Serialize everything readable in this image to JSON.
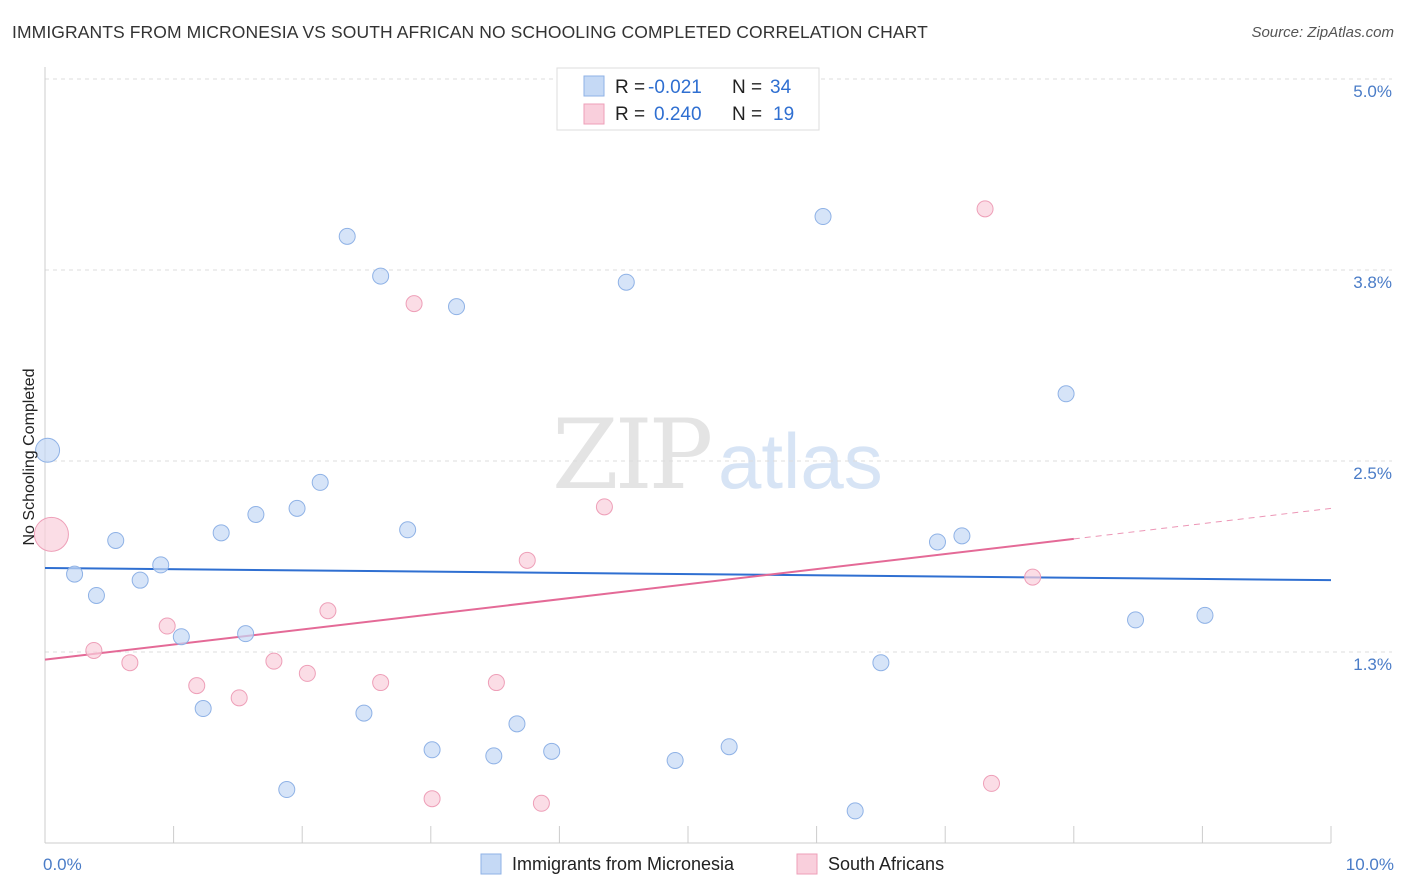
{
  "header": {
    "title": "IMMIGRANTS FROM MICRONESIA VS SOUTH AFRICAN NO SCHOOLING COMPLETED CORRELATION CHART",
    "source": "Source: ZipAtlas.com"
  },
  "watermark": {
    "zip": "ZIP",
    "atlas": "atlas"
  },
  "colors": {
    "blue_fill": "#c5d9f5",
    "blue_stroke": "#8fb2e6",
    "blue_line": "#2f6fd1",
    "pink_fill": "#f9cfdc",
    "pink_stroke": "#ee9fb8",
    "pink_line": "#e46a97",
    "grid": "#dddddd",
    "tick_text": "#4a7cc7"
  },
  "legend": {
    "rows": [
      {
        "r_label": "R =",
        "r_value": "-0.021",
        "n_label": "N =",
        "n_value": "34"
      },
      {
        "r_label": "R =",
        "r_value": "0.240",
        "n_label": "N =",
        "n_value": "19"
      }
    ]
  },
  "chart_data": {
    "type": "scatter",
    "xlabel": "",
    "ylabel": "No Schooling Completed",
    "xlim": [
      0.0,
      10.0
    ],
    "ylim": [
      0.0,
      5.0
    ],
    "x_tick_labels": [
      "0.0%",
      "10.0%"
    ],
    "y_ticks": [
      {
        "value": 1.25,
        "label": "1.3%"
      },
      {
        "value": 2.5,
        "label": "2.5%"
      },
      {
        "value": 3.75,
        "label": "3.8%"
      },
      {
        "value": 5.0,
        "label": "5.0%"
      }
    ],
    "grid": "horizontal dashed",
    "series": [
      {
        "name": "Immigrants from Micronesia",
        "color": "#8fb2e6",
        "points": [
          {
            "x": 0.02,
            "y": 2.57,
            "size": "large"
          },
          {
            "x": 0.23,
            "y": 1.76
          },
          {
            "x": 0.4,
            "y": 1.62
          },
          {
            "x": 0.55,
            "y": 1.98
          },
          {
            "x": 0.74,
            "y": 1.72
          },
          {
            "x": 0.9,
            "y": 1.82
          },
          {
            "x": 1.06,
            "y": 1.35
          },
          {
            "x": 1.23,
            "y": 0.88
          },
          {
            "x": 1.37,
            "y": 2.03
          },
          {
            "x": 1.56,
            "y": 1.37
          },
          {
            "x": 1.64,
            "y": 2.15
          },
          {
            "x": 1.88,
            "y": 0.35
          },
          {
            "x": 1.96,
            "y": 2.19
          },
          {
            "x": 2.14,
            "y": 2.36
          },
          {
            "x": 2.35,
            "y": 3.97
          },
          {
            "x": 2.48,
            "y": 0.85
          },
          {
            "x": 2.61,
            "y": 3.71
          },
          {
            "x": 2.82,
            "y": 2.05
          },
          {
            "x": 3.01,
            "y": 0.61
          },
          {
            "x": 3.2,
            "y": 3.51
          },
          {
            "x": 3.49,
            "y": 0.57
          },
          {
            "x": 3.67,
            "y": 0.78
          },
          {
            "x": 3.94,
            "y": 0.6
          },
          {
            "x": 4.52,
            "y": 3.67
          },
          {
            "x": 4.9,
            "y": 0.54
          },
          {
            "x": 5.32,
            "y": 0.63
          },
          {
            "x": 6.05,
            "y": 4.1
          },
          {
            "x": 6.3,
            "y": 0.21
          },
          {
            "x": 6.5,
            "y": 1.18
          },
          {
            "x": 6.94,
            "y": 1.97
          },
          {
            "x": 7.13,
            "y": 2.01
          },
          {
            "x": 7.94,
            "y": 2.94
          },
          {
            "x": 8.48,
            "y": 1.46
          },
          {
            "x": 9.02,
            "y": 1.49
          }
        ],
        "trend": {
          "x0": 0.0,
          "y0": 1.8,
          "x1": 10.0,
          "y1": 1.72
        }
      },
      {
        "name": "South Africans",
        "color": "#ee9fb8",
        "points": [
          {
            "x": 0.05,
            "y": 2.02,
            "size": "large"
          },
          {
            "x": 0.38,
            "y": 1.26
          },
          {
            "x": 0.66,
            "y": 1.18
          },
          {
            "x": 0.95,
            "y": 1.42
          },
          {
            "x": 1.18,
            "y": 1.03
          },
          {
            "x": 1.51,
            "y": 0.95
          },
          {
            "x": 1.78,
            "y": 1.19
          },
          {
            "x": 2.04,
            "y": 1.11
          },
          {
            "x": 2.2,
            "y": 1.52
          },
          {
            "x": 2.61,
            "y": 1.05
          },
          {
            "x": 2.87,
            "y": 3.53
          },
          {
            "x": 3.01,
            "y": 0.29
          },
          {
            "x": 3.51,
            "y": 1.05
          },
          {
            "x": 3.75,
            "y": 1.85
          },
          {
            "x": 3.86,
            "y": 0.26
          },
          {
            "x": 4.35,
            "y": 2.2
          },
          {
            "x": 7.31,
            "y": 4.15
          },
          {
            "x": 7.36,
            "y": 0.39
          },
          {
            "x": 7.68,
            "y": 1.74
          }
        ],
        "trend": {
          "x0": 0.0,
          "y0": 1.2,
          "x1": 8.0,
          "y1": 1.99
        },
        "trend_dashed": {
          "x0": 8.0,
          "y0": 1.99,
          "x1": 10.0,
          "y1": 2.19
        }
      }
    ]
  }
}
